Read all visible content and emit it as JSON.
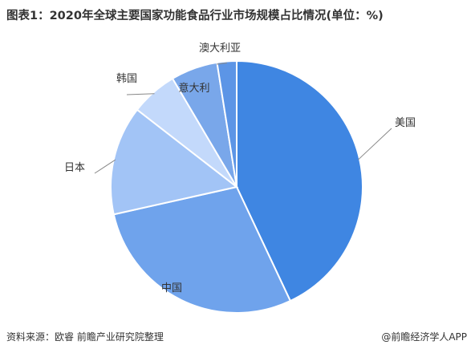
{
  "title": "图表1：2020年全球主要国家功能食品行业市场规模占比情况(单位：%)",
  "source": "资料来源：欧睿 前瞻产业研究院整理",
  "credit": "@前瞻经济学人APP",
  "colors": {
    "美国": "#3f86e2",
    "中国": "#6fa3ec",
    "日本": "#a2c4f6",
    "韩国": "#c3d9fb",
    "意大利": "#79a7ea",
    "澳大利亚": "#5c95e6"
  },
  "chart_data": {
    "type": "pie",
    "title": "图表1：2020年全球主要国家功能食品行业市场规模占比情况(单位：%)",
    "unit": "%",
    "categories": [
      "美国",
      "中国",
      "日本",
      "韩国",
      "意大利",
      "澳大利亚"
    ],
    "values": [
      43,
      28.5,
      14,
      6,
      6,
      2.5
    ]
  }
}
